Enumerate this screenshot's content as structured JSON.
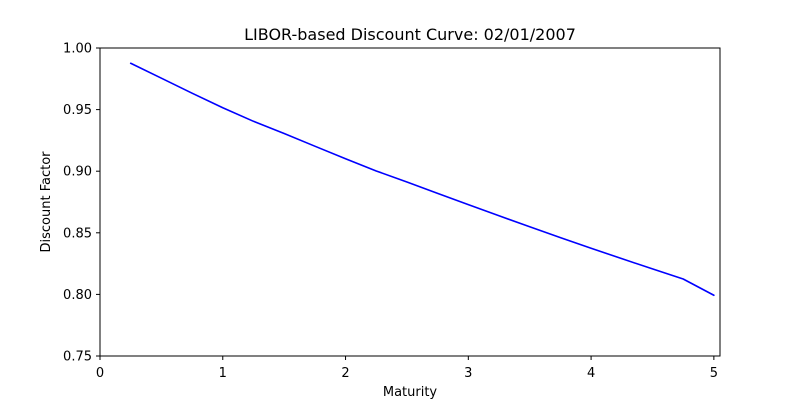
{
  "chart_data": {
    "type": "line",
    "title": "LIBOR-based Discount Curve: 02/01/2007",
    "xlabel": "Maturity",
    "ylabel": "Discount Factor",
    "xlim": [
      0,
      5.05
    ],
    "ylim": [
      0.75,
      1.0
    ],
    "xticks": [
      0,
      1,
      2,
      3,
      4,
      5
    ],
    "xtick_labels": [
      "0",
      "1",
      "2",
      "3",
      "4",
      "5"
    ],
    "yticks": [
      0.75,
      0.8,
      0.85,
      0.9,
      0.95,
      1.0
    ],
    "ytick_labels": [
      "0.75",
      "0.80",
      "0.85",
      "0.90",
      "0.95",
      "1.00"
    ],
    "grid": false,
    "series": [
      {
        "color": "#0000ff",
        "x": [
          0.25,
          0.5,
          0.75,
          1.0,
          1.25,
          1.5,
          1.75,
          2.0,
          2.25,
          2.5,
          2.75,
          3.0,
          3.25,
          3.5,
          3.75,
          4.0,
          4.25,
          4.5,
          4.75,
          5.0
        ],
        "y": [
          0.9876,
          0.9755,
          0.9633,
          0.9515,
          0.9405,
          0.9306,
          0.9203,
          0.9101,
          0.9002,
          0.8912,
          0.882,
          0.8729,
          0.8638,
          0.8549,
          0.8461,
          0.8375,
          0.829,
          0.8207,
          0.8125,
          0.7993
        ]
      }
    ]
  }
}
